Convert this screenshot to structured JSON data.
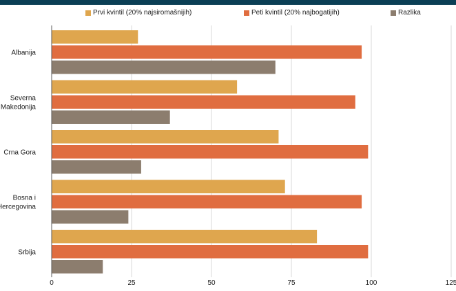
{
  "chart_data": {
    "type": "bar",
    "orientation": "horizontal",
    "categories": [
      "Albanija",
      "Severna Makedonija",
      "Crna Gora",
      "Bosna i Hercegovina",
      "Srbija"
    ],
    "category_lines": [
      [
        "Albanija"
      ],
      [
        "Severna",
        "Makedonija"
      ],
      [
        "Crna Gora"
      ],
      [
        "Bosna i",
        "Hercegovina"
      ],
      [
        "Srbija"
      ]
    ],
    "series": [
      {
        "name": "Prvi kvintil (20% najsiromašnijih)",
        "color": "#dfa64e",
        "values": [
          27,
          58,
          71,
          73,
          83
        ]
      },
      {
        "name": "Peti kvintil (20% najbogatijih)",
        "color": "#e06d40",
        "values": [
          97,
          95,
          99,
          97,
          99
        ]
      },
      {
        "name": "Razlika",
        "color": "#8c7d6e",
        "values": [
          70,
          37,
          28,
          24,
          16
        ]
      }
    ],
    "xlim": [
      0,
      125
    ],
    "xticks": [
      0,
      25,
      50,
      75,
      100,
      125
    ],
    "grid": true,
    "legend_position": "top"
  }
}
